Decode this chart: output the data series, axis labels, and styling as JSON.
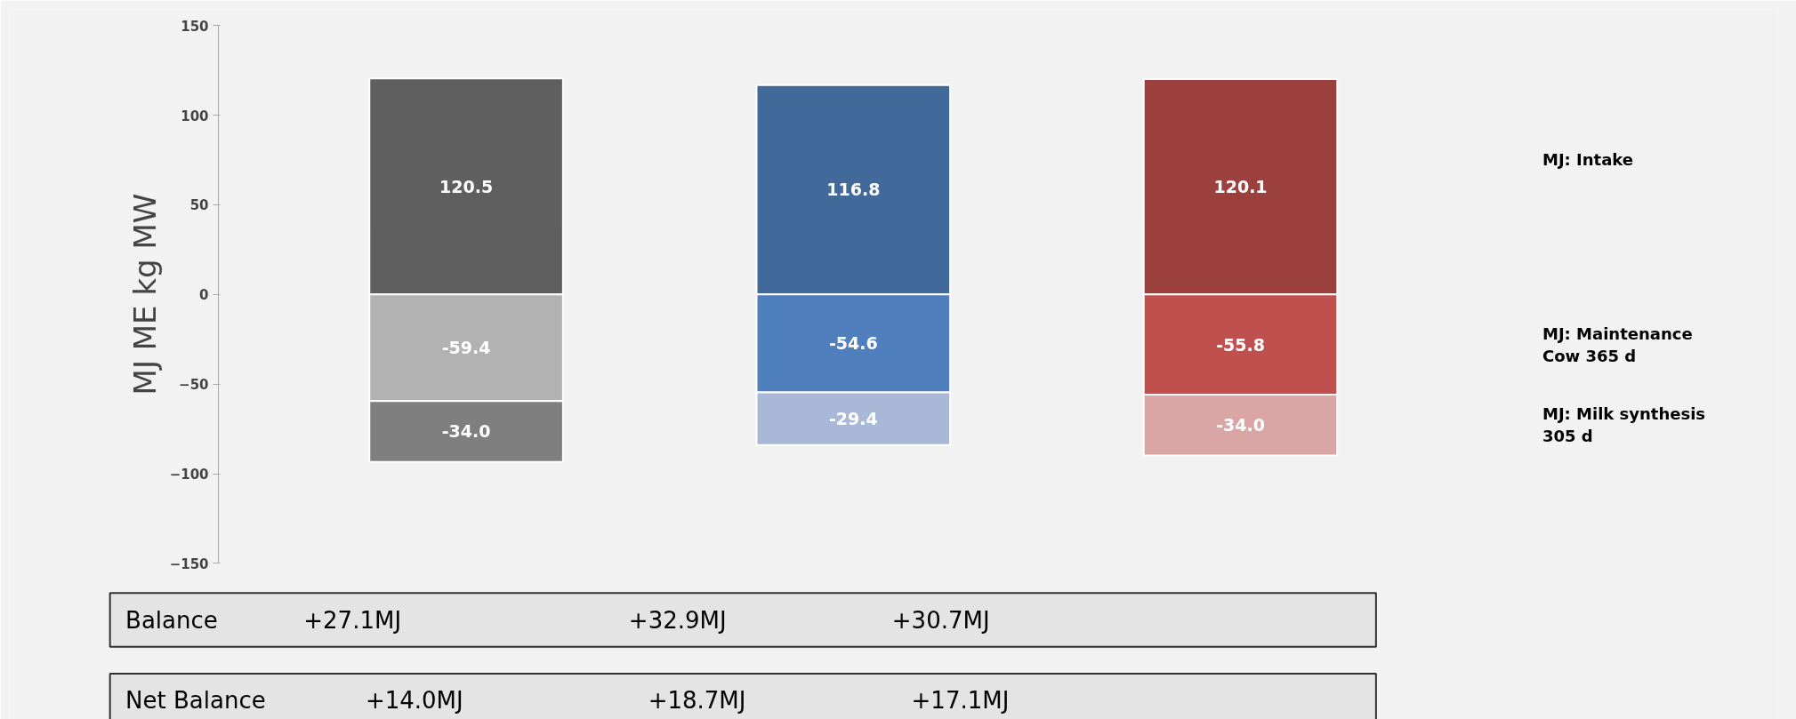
{
  "chart_data": {
    "type": "bar",
    "stacked": true,
    "ylabel": "MJ ME kg MW",
    "categories": [
      null,
      null,
      null
    ],
    "series": [
      {
        "name": "MJ: Intake",
        "colors": [
          "#5f5f5f",
          "#41699a",
          "#9c403e"
        ],
        "values": [
          120.5,
          116.8,
          120.1
        ],
        "value_labels": [
          "120.5",
          "116.8",
          "120.1"
        ]
      },
      {
        "name": "MJ: Maintenance\nCow  365 d",
        "colors": [
          "#b2b2b2",
          "#4f80bd",
          "#c0504d"
        ],
        "values": [
          -59.4,
          -54.6,
          -55.8
        ],
        "value_labels": [
          "-59.4",
          "-54.6",
          "-55.8"
        ]
      },
      {
        "name": "MJ: Milk synthesis\n305 d",
        "colors": [
          "#7f7f7f",
          "#a9b8d6",
          "#d9a6a5"
        ],
        "values": [
          -34.0,
          -29.4,
          -34.0
        ],
        "value_labels": [
          "-34.0",
          "-29.4",
          "-34.0"
        ]
      }
    ],
    "ylim": [
      -150,
      150
    ],
    "yticks": [
      -150,
      -100,
      -50,
      0,
      50,
      100,
      150
    ],
    "grid": false,
    "annotations": [
      "Balance",
      "+27.1MJ",
      "+32.9MJ",
      "+30.7MJ",
      "Net Balance",
      "+14.0MJ",
      "+18.7MJ",
      "+17.1MJ"
    ]
  }
}
